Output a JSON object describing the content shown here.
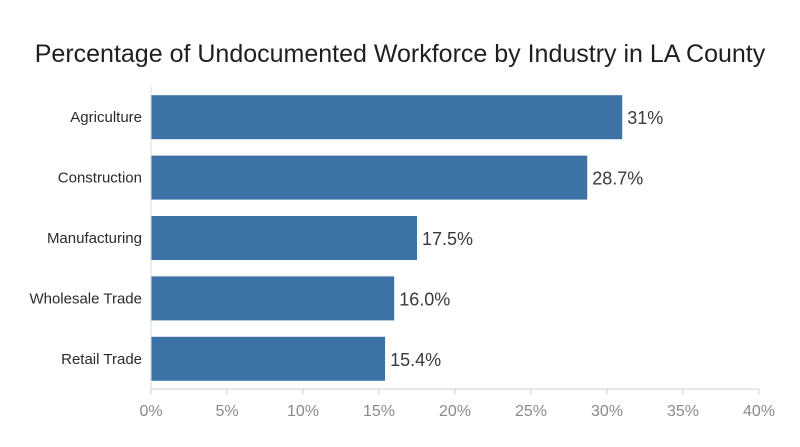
{
  "chart_data": {
    "type": "bar",
    "orientation": "horizontal",
    "title": "Percentage of Undocumented Workforce by Industry in LA County",
    "categories": [
      "Agriculture",
      "Construction",
      "Manufacturing",
      "Wholesale Trade",
      "Retail Trade"
    ],
    "values": [
      31,
      28.7,
      17.5,
      16.0,
      15.4
    ],
    "value_labels": [
      "31%",
      "28.7%",
      "17.5%",
      "16.0%",
      "15.4%"
    ],
    "xlim": [
      0,
      40
    ],
    "x_ticks": [
      0,
      5,
      10,
      15,
      20,
      25,
      30,
      35,
      40
    ],
    "x_tick_labels": [
      "0%",
      "5%",
      "10%",
      "15%",
      "20%",
      "25%",
      "30%",
      "35%",
      "40%"
    ],
    "xlabel": "",
    "ylabel": "",
    "grid": false,
    "bar_color": "#3d72a6"
  }
}
